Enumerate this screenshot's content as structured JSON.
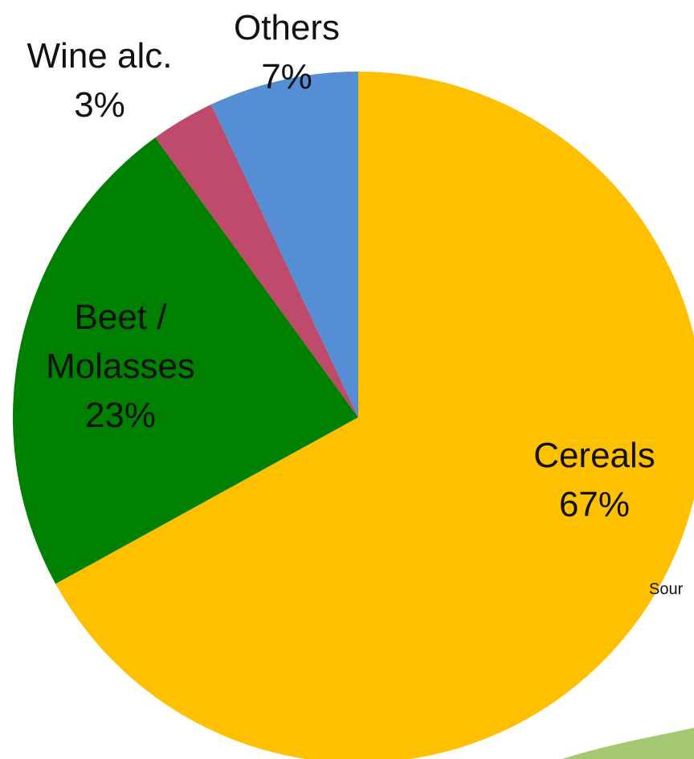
{
  "chart_data": {
    "type": "pie",
    "categories": [
      "Cereals",
      "Beet / Molasses",
      "Wine alc.",
      "Others"
    ],
    "values": [
      67,
      23,
      3,
      7
    ],
    "value_labels": [
      "67%",
      "23%",
      "3%",
      "7%"
    ],
    "colors": [
      "#ffc000",
      "#008000",
      "#be4b6b",
      "#558ed5"
    ],
    "note": "Sour"
  }
}
